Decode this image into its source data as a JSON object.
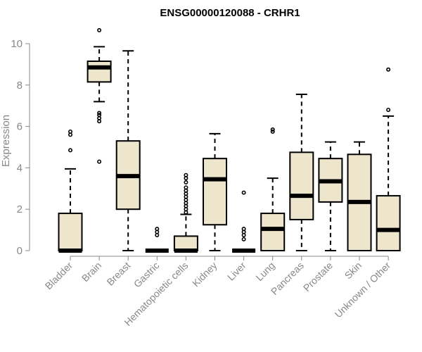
{
  "chart_data": {
    "type": "boxplot",
    "title": "ENSG00000120088 - CRHR1",
    "ylabel": "Expression",
    "xlabel": "",
    "ylim": [
      0,
      10
    ],
    "yticks": [
      0,
      2,
      4,
      6,
      8,
      10
    ],
    "grid": false,
    "legend": "none",
    "box_color": "#ede6cc",
    "categories": [
      "Bladder",
      "Brain",
      "Breast",
      "Gastric",
      "Hematopoietic cells",
      "Kidney",
      "Liver",
      "Lung",
      "Pancreas",
      "Prostate",
      "Skin",
      "Unknown / Other"
    ],
    "boxes": [
      {
        "category": "Bladder",
        "whisker_low": 0,
        "q1": 0,
        "median": 0,
        "q3": 1.8,
        "whisker_high": 3.95,
        "outliers": [
          4.85,
          5.6,
          5.75
        ]
      },
      {
        "category": "Brain",
        "whisker_low": 7.2,
        "q1": 8.15,
        "median": 8.85,
        "q3": 9.15,
        "whisker_high": 9.85,
        "outliers": [
          4.3,
          6.25,
          6.4,
          6.55,
          6.65,
          10.65
        ]
      },
      {
        "category": "Breast",
        "whisker_low": 0,
        "q1": 2.0,
        "median": 3.6,
        "q3": 5.3,
        "whisker_high": 9.65,
        "outliers": []
      },
      {
        "category": "Gastric",
        "whisker_low": 0,
        "q1": 0,
        "median": 0,
        "q3": 0,
        "whisker_high": 0,
        "outliers": [
          0.75,
          0.9,
          1.05
        ]
      },
      {
        "category": "Hematopoietic cells",
        "whisker_low": 0,
        "q1": 0,
        "median": 0,
        "q3": 0.7,
        "whisker_high": 1.75,
        "outliers": [
          1.85,
          2.0,
          2.15,
          2.3,
          2.45,
          2.6,
          2.75,
          2.9,
          3.05,
          3.3,
          3.5,
          3.65
        ]
      },
      {
        "category": "Kidney",
        "whisker_low": 0,
        "q1": 1.25,
        "median": 3.45,
        "q3": 4.45,
        "whisker_high": 5.65,
        "outliers": []
      },
      {
        "category": "Liver",
        "whisker_low": 0,
        "q1": 0,
        "median": 0,
        "q3": 0,
        "whisker_high": 0,
        "outliers": [
          0.55,
          0.75,
          0.9,
          1.05,
          2.8
        ]
      },
      {
        "category": "Lung",
        "whisker_low": 0,
        "q1": 0,
        "median": 1.05,
        "q3": 1.8,
        "whisker_high": 3.5,
        "outliers": [
          5.75,
          5.85
        ]
      },
      {
        "category": "Pancreas",
        "whisker_low": 0,
        "q1": 1.5,
        "median": 2.65,
        "q3": 4.75,
        "whisker_high": 7.55,
        "outliers": []
      },
      {
        "category": "Prostate",
        "whisker_low": 0,
        "q1": 2.35,
        "median": 3.35,
        "q3": 4.45,
        "whisker_high": 5.25,
        "outliers": []
      },
      {
        "category": "Skin",
        "whisker_low": 0,
        "q1": 0,
        "median": 2.35,
        "q3": 4.65,
        "whisker_high": 5.25,
        "outliers": []
      },
      {
        "category": "Unknown / Other",
        "whisker_low": 0,
        "q1": 0,
        "median": 1.0,
        "q3": 2.65,
        "whisker_high": 6.5,
        "outliers": [
          6.8,
          8.75
        ]
      }
    ]
  }
}
